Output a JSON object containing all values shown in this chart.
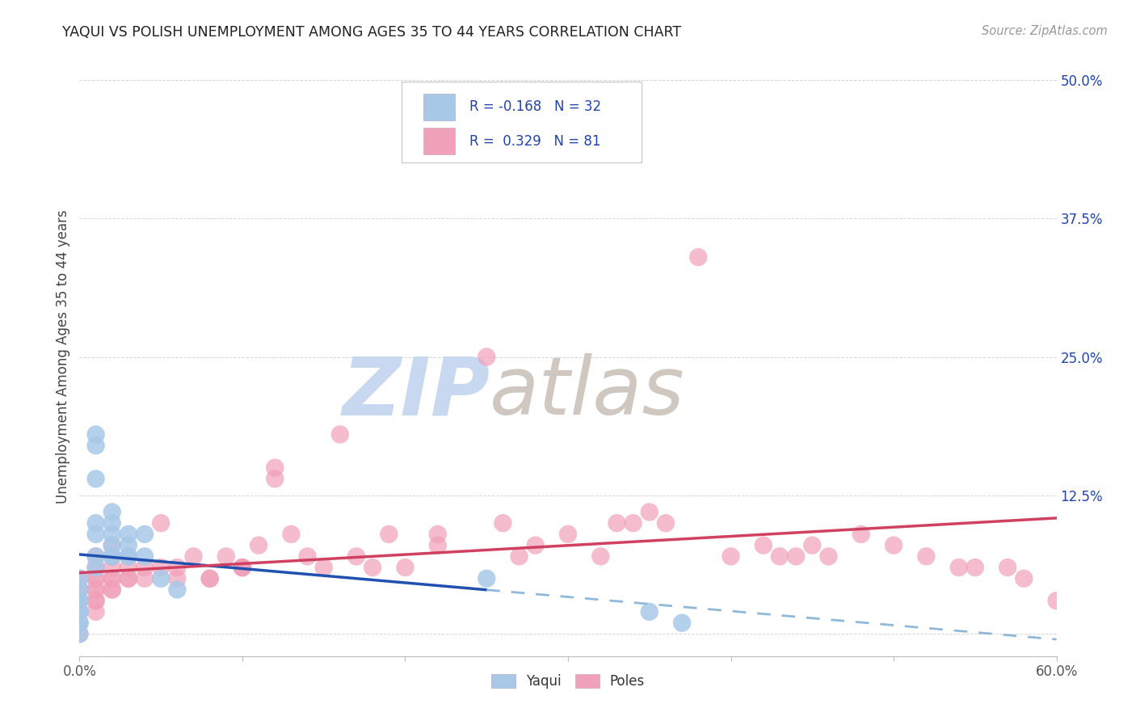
{
  "title": "YAQUI VS POLISH UNEMPLOYMENT AMONG AGES 35 TO 44 YEARS CORRELATION CHART",
  "source": "Source: ZipAtlas.com",
  "ylabel": "Unemployment Among Ages 35 to 44 years",
  "xlim": [
    0.0,
    0.6
  ],
  "ylim": [
    -0.02,
    0.52
  ],
  "yaqui_color": "#a8c8e8",
  "poles_color": "#f0a0b8",
  "trend_yaqui_color": "#2050b0",
  "trend_poles_color": "#d04060",
  "trend_yaqui_dash_color": "#90b8d8",
  "watermark_zip_color": "#c8d8f0",
  "watermark_atlas_color": "#d0c8c0",
  "background_color": "#ffffff",
  "grid_color": "#cccccc",
  "legend_box_color": "#f0f0f4",
  "legend_border_color": "#ccccdd",
  "label_color": "#2244aa",
  "axis_label_color": "#444444",
  "source_color": "#999999",
  "yaqui_x": [
    0.0,
    0.0,
    0.0,
    0.0,
    0.0,
    0.0,
    0.0,
    0.0,
    0.0,
    0.01,
    0.01,
    0.01,
    0.01,
    0.01,
    0.01,
    0.01,
    0.02,
    0.02,
    0.02,
    0.02,
    0.02,
    0.02,
    0.03,
    0.03,
    0.03,
    0.03,
    0.04,
    0.04,
    0.05,
    0.06,
    0.25,
    0.35,
    0.37
  ],
  "yaqui_y": [
    0.05,
    0.04,
    0.03,
    0.03,
    0.02,
    0.02,
    0.01,
    0.01,
    0.0,
    0.18,
    0.17,
    0.14,
    0.1,
    0.09,
    0.07,
    0.06,
    0.11,
    0.1,
    0.09,
    0.08,
    0.07,
    0.07,
    0.09,
    0.08,
    0.07,
    0.07,
    0.09,
    0.07,
    0.05,
    0.04,
    0.05,
    0.02,
    0.01
  ],
  "poles_x": [
    0.0,
    0.0,
    0.0,
    0.0,
    0.0,
    0.0,
    0.0,
    0.0,
    0.0,
    0.0,
    0.0,
    0.01,
    0.01,
    0.01,
    0.01,
    0.01,
    0.01,
    0.01,
    0.01,
    0.01,
    0.02,
    0.02,
    0.02,
    0.02,
    0.02,
    0.02,
    0.02,
    0.03,
    0.03,
    0.03,
    0.04,
    0.04,
    0.05,
    0.05,
    0.06,
    0.06,
    0.07,
    0.08,
    0.08,
    0.09,
    0.1,
    0.1,
    0.1,
    0.11,
    0.12,
    0.12,
    0.13,
    0.14,
    0.15,
    0.16,
    0.17,
    0.18,
    0.19,
    0.2,
    0.22,
    0.22,
    0.25,
    0.26,
    0.27,
    0.28,
    0.3,
    0.32,
    0.33,
    0.34,
    0.35,
    0.36,
    0.38,
    0.4,
    0.42,
    0.43,
    0.44,
    0.45,
    0.46,
    0.48,
    0.5,
    0.52,
    0.54,
    0.55,
    0.57,
    0.58,
    0.6
  ],
  "poles_y": [
    0.05,
    0.04,
    0.04,
    0.03,
    0.03,
    0.03,
    0.02,
    0.02,
    0.02,
    0.01,
    0.0,
    0.07,
    0.06,
    0.05,
    0.05,
    0.04,
    0.04,
    0.03,
    0.03,
    0.02,
    0.08,
    0.07,
    0.06,
    0.05,
    0.05,
    0.04,
    0.04,
    0.06,
    0.05,
    0.05,
    0.06,
    0.05,
    0.1,
    0.06,
    0.06,
    0.05,
    0.07,
    0.05,
    0.05,
    0.07,
    0.06,
    0.06,
    0.06,
    0.08,
    0.15,
    0.14,
    0.09,
    0.07,
    0.06,
    0.18,
    0.07,
    0.06,
    0.09,
    0.06,
    0.09,
    0.08,
    0.25,
    0.1,
    0.07,
    0.08,
    0.09,
    0.07,
    0.1,
    0.1,
    0.11,
    0.1,
    0.34,
    0.07,
    0.08,
    0.07,
    0.07,
    0.08,
    0.07,
    0.09,
    0.08,
    0.07,
    0.06,
    0.06,
    0.06,
    0.05,
    0.03
  ],
  "trend_yaqui_solid_end": 0.25,
  "trend_yaqui_dash_start": 0.25
}
